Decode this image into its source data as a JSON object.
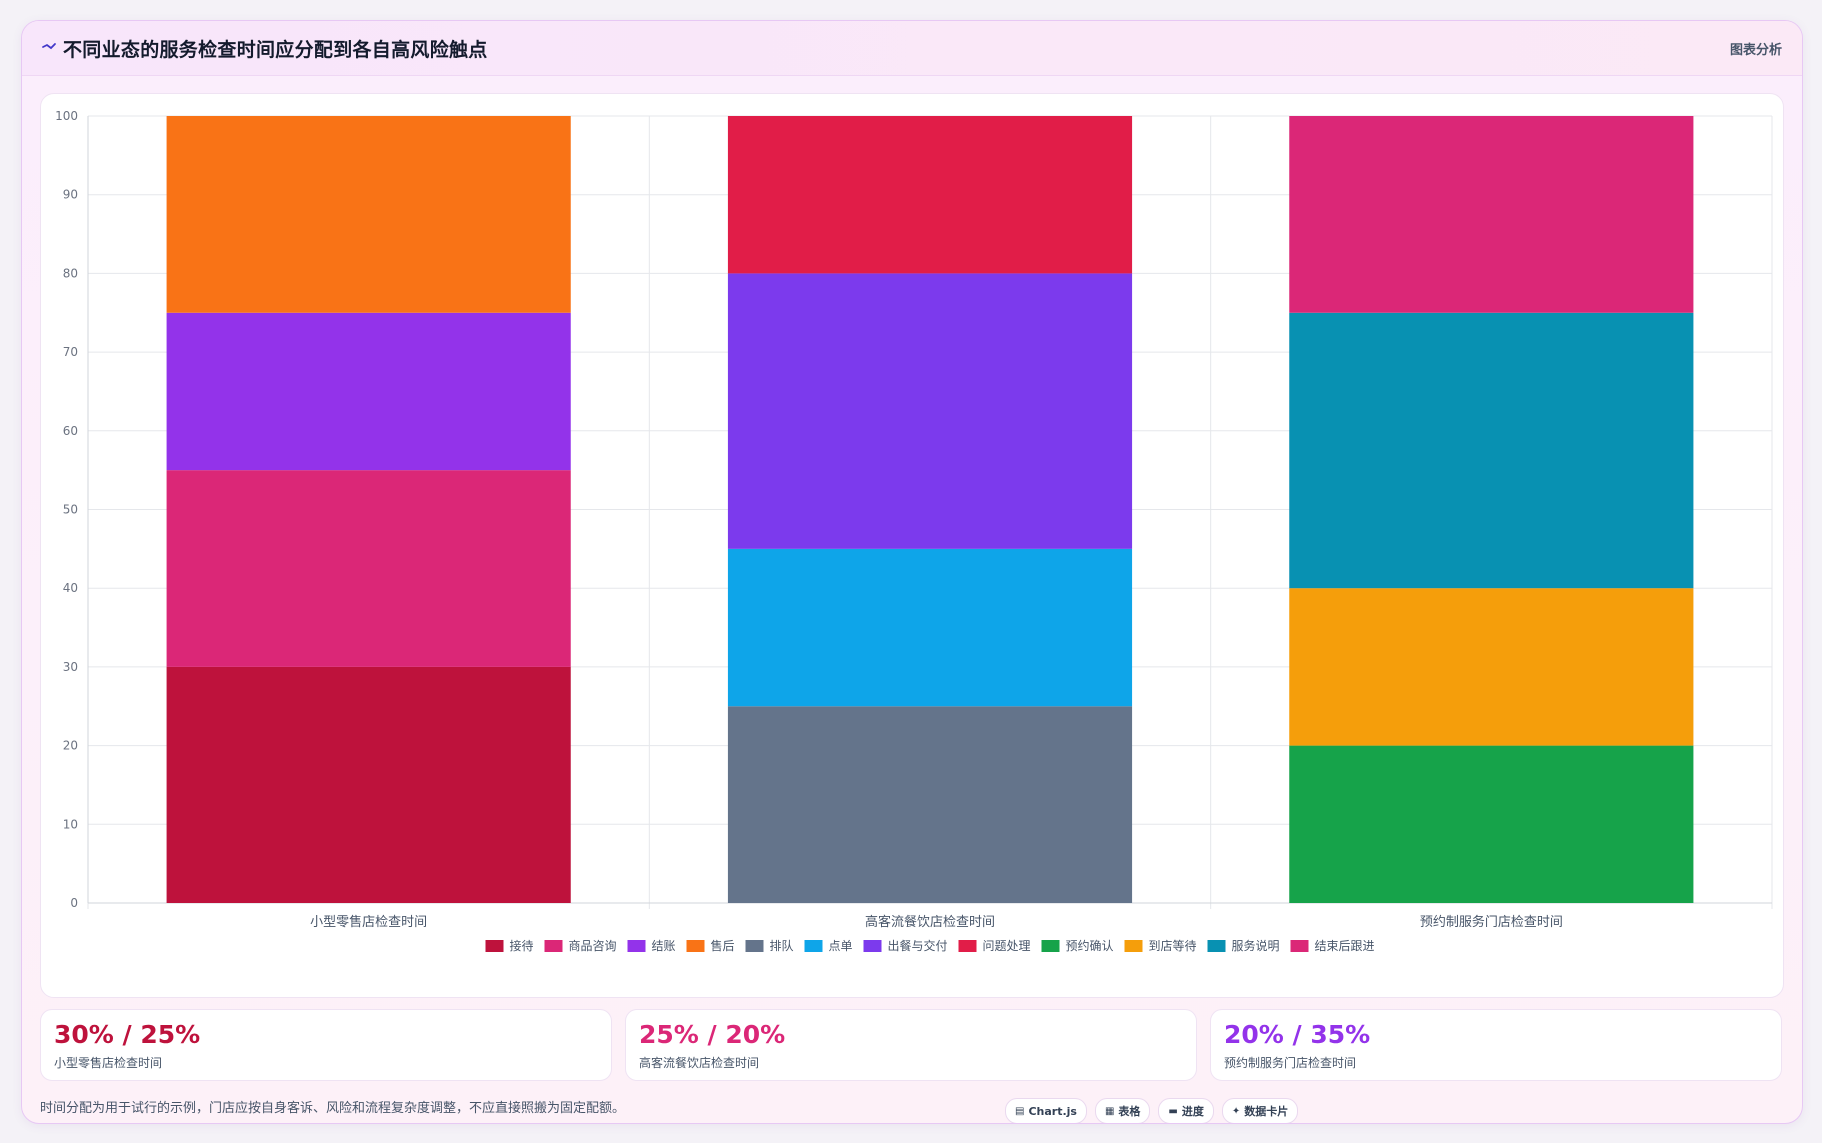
{
  "header": {
    "title": "不同业态的服务检查时间应分配到各自高风险触点",
    "right_label": "图表分析"
  },
  "chart_data": {
    "type": "bar",
    "stacked": true,
    "categories": [
      "小型零售店检查时间",
      "高客流餐饮店检查时间",
      "预约制服务门店检查时间"
    ],
    "ylim": [
      0,
      100
    ],
    "yticks": [
      0,
      10,
      20,
      30,
      40,
      50,
      60,
      70,
      80,
      90,
      100
    ],
    "grid": true,
    "legend_position": "bottom",
    "series": [
      {
        "name": "接待",
        "color": "#be123c",
        "values": [
          30,
          0,
          0
        ]
      },
      {
        "name": "商品咨询",
        "color": "#db2777",
        "values": [
          25,
          0,
          0
        ]
      },
      {
        "name": "结账",
        "color": "#9333ea",
        "values": [
          20,
          0,
          0
        ]
      },
      {
        "name": "售后",
        "color": "#f97316",
        "values": [
          25,
          0,
          0
        ]
      },
      {
        "name": "排队",
        "color": "#64748b",
        "values": [
          0,
          25,
          0
        ]
      },
      {
        "name": "点单",
        "color": "#0ea5e9",
        "values": [
          0,
          20,
          0
        ]
      },
      {
        "name": "出餐与交付",
        "color": "#7c3aed",
        "values": [
          0,
          35,
          0
        ]
      },
      {
        "name": "问题处理",
        "color": "#e11d48",
        "values": [
          0,
          20,
          0
        ]
      },
      {
        "name": "预约确认",
        "color": "#16a34a",
        "values": [
          0,
          0,
          20
        ]
      },
      {
        "name": "到店等待",
        "color": "#f59e0b",
        "values": [
          0,
          0,
          20
        ]
      },
      {
        "name": "服务说明",
        "color": "#0891b2",
        "values": [
          0,
          0,
          35
        ]
      },
      {
        "name": "结束后跟进",
        "color": "#db2777",
        "values": [
          0,
          0,
          25
        ]
      }
    ]
  },
  "stats": [
    {
      "value": "30% / 25%",
      "label": "小型零售店检查时间",
      "color": "#be123c"
    },
    {
      "value": "25% / 20%",
      "label": "高客流餐饮店检查时间",
      "color": "#db2777"
    },
    {
      "value": "20% / 35%",
      "label": "预约制服务门店检查时间",
      "color": "#9333ea"
    }
  ],
  "footnote": "时间分配为用于试行的示例，门店应按自身客诉、风险和流程复杂度调整，不应直接照搬为固定配额。",
  "chips": [
    {
      "icon": "chart-icon",
      "glyph": "▤",
      "label": "Chart.js"
    },
    {
      "icon": "table-icon",
      "glyph": "▦",
      "label": "表格"
    },
    {
      "icon": "progress-icon",
      "glyph": "▬",
      "label": "进度"
    },
    {
      "icon": "sparkle-icon",
      "glyph": "✦",
      "label": "数据卡片"
    }
  ]
}
